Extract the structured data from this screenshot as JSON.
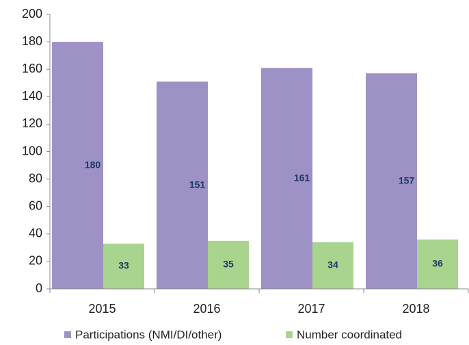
{
  "chart_data": {
    "type": "bar",
    "categories": [
      "2015",
      "2016",
      "2017",
      "2018"
    ],
    "series": [
      {
        "name": "Participations (NMI/DI/other)",
        "color": "#9e91c6",
        "values": [
          180,
          151,
          161,
          157
        ]
      },
      {
        "name": "Number coordinated",
        "color": "#a9d48e",
        "values": [
          33,
          35,
          34,
          36
        ]
      }
    ],
    "ylim": [
      0,
      200
    ],
    "yticks": [
      0,
      20,
      40,
      60,
      80,
      100,
      120,
      140,
      160,
      180,
      200
    ],
    "grid": false,
    "legend": "bottom"
  }
}
